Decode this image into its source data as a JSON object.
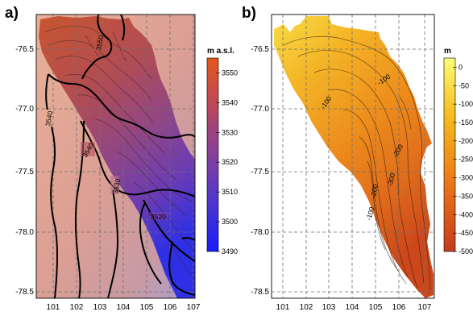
{
  "colors": {
    "elev_high": "#d94a1a",
    "elev_mid": "#9f4e7a",
    "elev_low": "#1e1ef5",
    "elev_background": "#e4a58f",
    "thick_low": "#f0fc78",
    "thick_mid": "#f4a51e",
    "thick_high": "#c8421c"
  },
  "chart_data": [
    {
      "type": "heatmap",
      "panel_label": "a)",
      "colorbar_unit": "m a.s.l.",
      "colorbar_ticks": [
        3550,
        3540,
        3530,
        3520,
        3510,
        3500,
        3490
      ],
      "colorbar_range": [
        3490,
        3555
      ],
      "x_ticks": [
        101,
        102,
        103,
        104,
        105,
        106,
        107
      ],
      "y_ticks": [
        -76.5,
        -77.0,
        -77.5,
        -78.0,
        -78.5
      ],
      "y_tick_labels": [
        "-76.5",
        "-77.0",
        "-77.5",
        "-78.0",
        "-78.5"
      ],
      "xlim": [
        100.5,
        107.2
      ],
      "ylim": [
        -78.7,
        -76.3
      ],
      "grid": true,
      "contour_labels": [
        {
          "text": "3550",
          "lon": 103.8,
          "lat": -76.55,
          "angle": -80
        },
        {
          "text": "3540",
          "lon": 101.4,
          "lat": -77.2,
          "angle": -80
        },
        {
          "text": "3540",
          "lon": 102.8,
          "lat": -77.45,
          "angle": -60
        },
        {
          "text": "3530",
          "lon": 104.3,
          "lat": -77.7,
          "angle": -80
        },
        {
          "text": "3520",
          "lon": 105.8,
          "lat": -77.9,
          "angle": 0
        }
      ]
    },
    {
      "type": "heatmap",
      "panel_label": "b)",
      "colorbar_unit": "m",
      "colorbar_ticks": [
        0,
        -50,
        -100,
        -150,
        -200,
        -250,
        -300,
        -350,
        -400,
        -450,
        -500
      ],
      "colorbar_range": [
        -500,
        25
      ],
      "x_ticks": [
        101,
        102,
        103,
        104,
        105,
        106,
        107
      ],
      "y_ticks": [
        -76.5,
        -77.0,
        -77.5,
        -78.0,
        -78.5
      ],
      "y_tick_labels": [
        "-76.5",
        "-77.0",
        "-77.5",
        "-78.0",
        "-78.5"
      ],
      "xlim": [
        100.5,
        107.2
      ],
      "ylim": [
        -78.7,
        -76.3
      ],
      "grid": true,
      "contour_labels": [
        {
          "text": "-100",
          "lon": 105.4,
          "lat": -76.8,
          "angle": -35
        },
        {
          "text": "-100",
          "lon": 103.4,
          "lat": -77.0,
          "angle": -55
        },
        {
          "text": "-200",
          "lon": 106.1,
          "lat": -77.5,
          "angle": -60
        },
        {
          "text": "-200",
          "lon": 105.2,
          "lat": -77.8,
          "angle": -80
        },
        {
          "text": "-300",
          "lon": 105.9,
          "lat": -77.8,
          "angle": -75
        },
        {
          "text": "-100",
          "lon": 104.6,
          "lat": -78.0,
          "angle": -75
        }
      ]
    }
  ]
}
